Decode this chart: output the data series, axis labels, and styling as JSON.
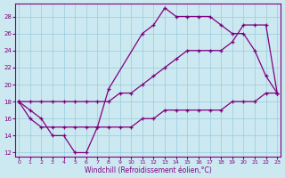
{
  "background_color": "#cce8f0",
  "line_color": "#800080",
  "grid_color": "#99ccdd",
  "xlabel": "Windchill (Refroidissement éolien,°C)",
  "xlim_min": -0.3,
  "xlim_max": 23.3,
  "ylim_min": 11.5,
  "ylim_max": 29.5,
  "xticks": [
    0,
    1,
    2,
    3,
    4,
    5,
    6,
    7,
    8,
    9,
    10,
    11,
    12,
    13,
    14,
    15,
    16,
    17,
    18,
    19,
    20,
    21,
    22,
    23
  ],
  "yticks": [
    12,
    14,
    16,
    18,
    20,
    22,
    24,
    26,
    28
  ],
  "curve1_x": [
    0,
    1,
    2,
    3,
    4,
    5,
    6,
    7,
    8,
    11,
    12,
    13,
    14,
    15,
    16,
    17,
    18,
    19,
    20,
    21,
    22,
    23
  ],
  "curve1_y": [
    18,
    17,
    16,
    14,
    14,
    12,
    12,
    15,
    19.5,
    26,
    27,
    29,
    28,
    28,
    28,
    28,
    27,
    26,
    26,
    24,
    21,
    19
  ],
  "curve2_x": [
    0,
    1,
    2,
    3,
    4,
    5,
    6,
    7,
    8,
    9,
    10,
    11,
    12,
    13,
    14,
    15,
    16,
    17,
    18,
    19,
    20,
    21,
    22,
    23
  ],
  "curve2_y": [
    18,
    18,
    18,
    18,
    18,
    18,
    18,
    18,
    18,
    19,
    19,
    20,
    21,
    22,
    23,
    24,
    24,
    24,
    24,
    25,
    27,
    27,
    27,
    19
  ],
  "curve3_x": [
    0,
    1,
    2,
    3,
    4,
    5,
    6,
    7,
    8,
    9,
    10,
    11,
    12,
    13,
    14,
    15,
    16,
    17,
    18,
    19,
    20,
    21,
    22,
    23
  ],
  "curve3_y": [
    18,
    16,
    15,
    15,
    15,
    15,
    15,
    15,
    15,
    15,
    15,
    16,
    16,
    17,
    17,
    17,
    17,
    17,
    17,
    18,
    18,
    18,
    19,
    19
  ]
}
